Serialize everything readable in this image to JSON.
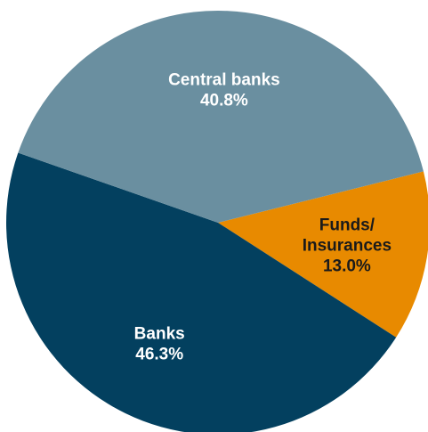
{
  "chart_data": {
    "type": "pie",
    "start_angle_deg": -14,
    "direction": "clockwise",
    "slices": [
      {
        "name": "Funds/ Insurances",
        "lines": [
          "Funds/",
          "Insurances"
        ],
        "value": 13.0,
        "value_label": "13.0%",
        "color": "#E88A00",
        "label_color": "#1a1a1a"
      },
      {
        "name": "Banks",
        "lines": [
          "Banks"
        ],
        "value": 46.3,
        "value_label": "46.3%",
        "color": "#03405F",
        "label_color": "#ffffff"
      },
      {
        "name": "Central banks",
        "lines": [
          "Central banks"
        ],
        "value": 40.8,
        "value_label": "40.8%",
        "color": "#6A8FA0",
        "label_color": "#ffffff"
      }
    ]
  }
}
